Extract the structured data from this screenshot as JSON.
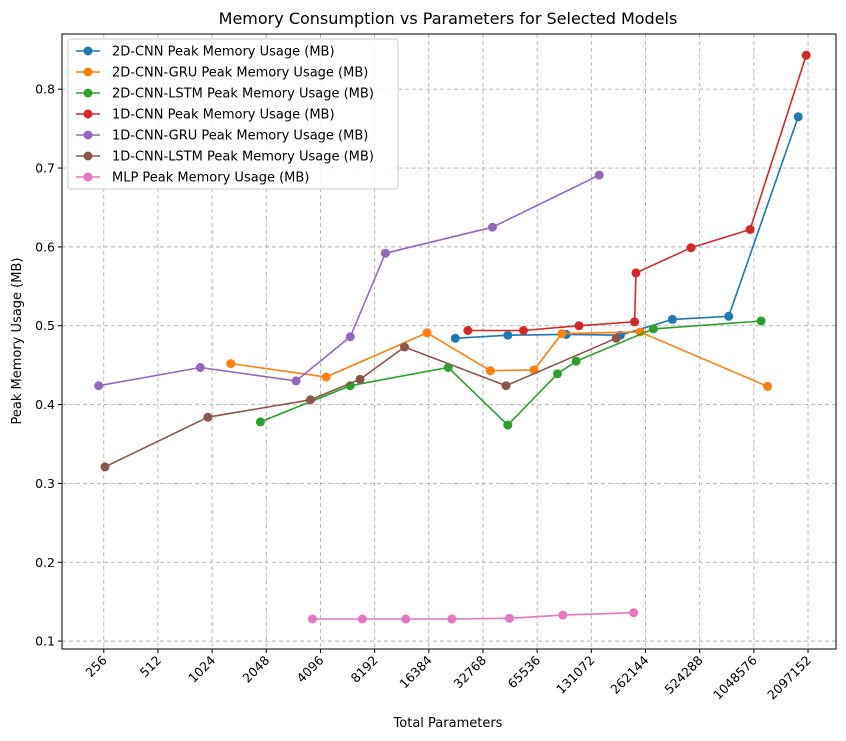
{
  "chart_data": {
    "type": "line",
    "title": "Memory Consumption vs Parameters for Selected Models",
    "xlabel": "Total Parameters",
    "ylabel": "Peak Memory Usage (MB)",
    "x_scale": "log2",
    "xlim": [
      150,
      3000000
    ],
    "ylim": [
      0.09,
      0.87
    ],
    "grid": true,
    "legend_position": "top-left",
    "x_ticks": [
      256,
      512,
      1024,
      2048,
      4096,
      8192,
      16384,
      32768,
      65536,
      131072,
      262144,
      524288,
      1048576,
      2097152
    ],
    "x_tick_labels": [
      "256",
      "512",
      "1024",
      "2048",
      "4096",
      "8192",
      "16384",
      "32768",
      "65536",
      "131072",
      "262144",
      "524288",
      "1048576",
      "2097152"
    ],
    "y_ticks": [
      0.1,
      0.2,
      0.3,
      0.4,
      0.5,
      0.6,
      0.7,
      0.8
    ],
    "y_tick_labels": [
      "0.1",
      "0.2",
      "0.3",
      "0.4",
      "0.5",
      "0.6",
      "0.7",
      "0.8"
    ],
    "series": [
      {
        "name": "2D-CNN Peak Memory Usage (MB)",
        "color": "#1f77b4",
        "points": [
          [
            23000,
            0.484
          ],
          [
            45000,
            0.488
          ],
          [
            95000,
            0.489
          ],
          [
            190000,
            0.488
          ],
          [
            370000,
            0.508
          ],
          [
            760000,
            0.512
          ],
          [
            1850000,
            0.765
          ]
        ]
      },
      {
        "name": "2D-CNN-GRU Peak Memory Usage (MB)",
        "color": "#ff7f0e",
        "points": [
          [
            1300,
            0.452
          ],
          [
            4400,
            0.435
          ],
          [
            16000,
            0.491
          ],
          [
            36000,
            0.443
          ],
          [
            63000,
            0.444
          ],
          [
            90000,
            0.49
          ],
          [
            245000,
            0.492
          ],
          [
            1250000,
            0.423
          ]
        ]
      },
      {
        "name": "2D-CNN-LSTM Peak Memory Usage (MB)",
        "color": "#2ca02c",
        "points": [
          [
            1900,
            0.378
          ],
          [
            6000,
            0.424
          ],
          [
            21000,
            0.447
          ],
          [
            45000,
            0.374
          ],
          [
            85000,
            0.439
          ],
          [
            108000,
            0.455
          ],
          [
            290000,
            0.496
          ],
          [
            1150000,
            0.506
          ]
        ]
      },
      {
        "name": "1D-CNN Peak Memory Usage (MB)",
        "color": "#d62728",
        "points": [
          [
            27000,
            0.494
          ],
          [
            55000,
            0.494
          ],
          [
            112000,
            0.5
          ],
          [
            228000,
            0.505
          ],
          [
            232000,
            0.567
          ],
          [
            470000,
            0.599
          ],
          [
            1000000,
            0.622
          ],
          [
            2050000,
            0.843
          ]
        ]
      },
      {
        "name": "1D-CNN-GRU Peak Memory Usage (MB)",
        "color": "#9467bd",
        "points": [
          [
            240,
            0.424
          ],
          [
            880,
            0.447
          ],
          [
            3000,
            0.43
          ],
          [
            6000,
            0.486
          ],
          [
            9400,
            0.592
          ],
          [
            37000,
            0.625
          ],
          [
            145000,
            0.691
          ]
        ]
      },
      {
        "name": "1D-CNN-LSTM Peak Memory Usage (MB)",
        "color": "#8c564b",
        "points": [
          [
            260,
            0.321
          ],
          [
            970,
            0.384
          ],
          [
            3600,
            0.406
          ],
          [
            6800,
            0.432
          ],
          [
            12000,
            0.473
          ],
          [
            44000,
            0.424
          ],
          [
            180000,
            0.484
          ]
        ]
      },
      {
        "name": "MLP Peak Memory Usage (MB)",
        "color": "#e377c2",
        "points": [
          [
            3700,
            0.128
          ],
          [
            7000,
            0.128
          ],
          [
            12200,
            0.128
          ],
          [
            22000,
            0.128
          ],
          [
            46000,
            0.129
          ],
          [
            91000,
            0.133
          ],
          [
            225000,
            0.136
          ]
        ]
      }
    ]
  }
}
